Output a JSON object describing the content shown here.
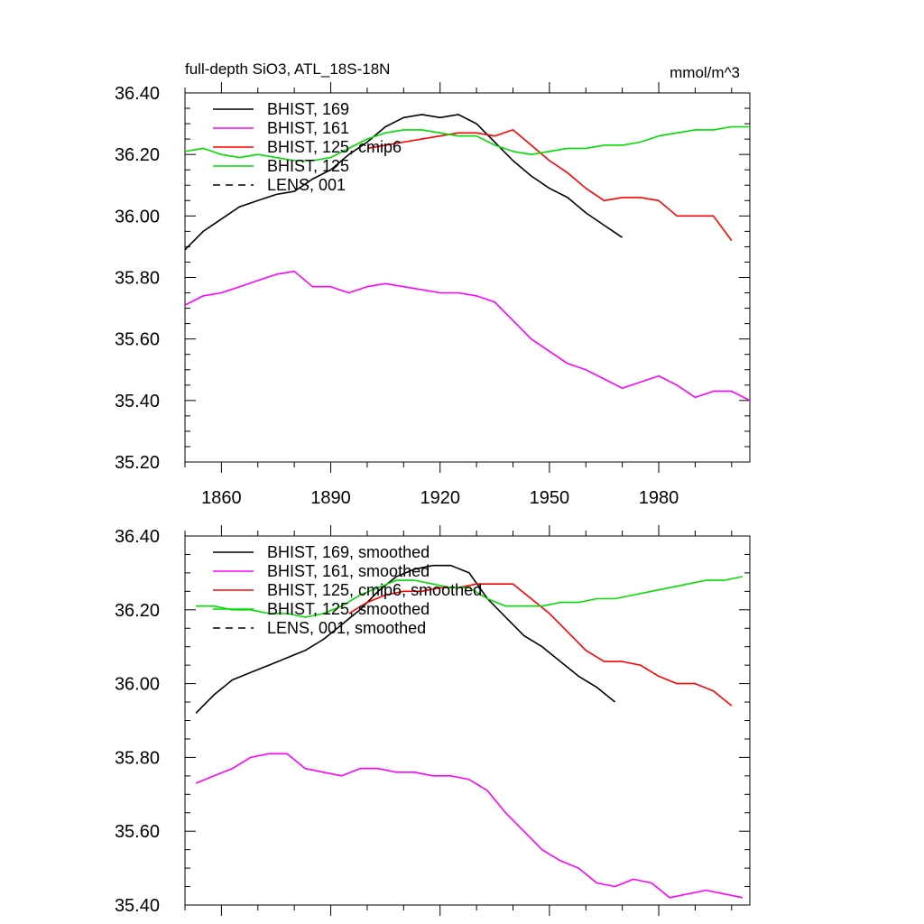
{
  "chart_data": [
    {
      "type": "line",
      "title": "full-depth SiO3, ATL_18S-18N",
      "units": "mmol/m^3",
      "xlim": [
        1850,
        2005
      ],
      "ylim": [
        35.2,
        36.4
      ],
      "xticks": [
        1860,
        1890,
        1920,
        1950,
        1980
      ],
      "yticks": [
        35.2,
        35.4,
        35.6,
        35.8,
        36.0,
        36.2,
        36.4
      ],
      "ytick_labels": [
        "35.20",
        "35.40",
        "35.60",
        "35.80",
        "36.00",
        "36.20",
        "36.40"
      ],
      "legend_position": "top-left",
      "series": [
        {
          "name": "BHIST, 169",
          "color": "#000000",
          "dash": "solid",
          "x": [
            1850,
            1855,
            1860,
            1865,
            1870,
            1875,
            1880,
            1885,
            1890,
            1895,
            1900,
            1905,
            1910,
            1915,
            1920,
            1925,
            1930,
            1935,
            1940,
            1945,
            1950,
            1955,
            1960,
            1965,
            1970
          ],
          "values": [
            35.89,
            35.95,
            35.99,
            36.03,
            36.05,
            36.07,
            36.08,
            36.12,
            36.15,
            36.2,
            36.24,
            36.29,
            36.32,
            36.33,
            36.32,
            36.33,
            36.3,
            36.24,
            36.18,
            36.13,
            36.09,
            36.06,
            36.01,
            35.97,
            35.93
          ]
        },
        {
          "name": "BHIST, 161",
          "color": "#ff00ff",
          "dash": "solid",
          "x": [
            1850,
            1855,
            1860,
            1865,
            1870,
            1875,
            1880,
            1885,
            1890,
            1895,
            1900,
            1905,
            1910,
            1915,
            1920,
            1925,
            1930,
            1935,
            1940,
            1945,
            1950,
            1955,
            1960,
            1965,
            1970,
            1975,
            1980,
            1985,
            1990,
            1995,
            2000,
            2005
          ],
          "values": [
            35.71,
            35.74,
            35.75,
            35.77,
            35.79,
            35.81,
            35.82,
            35.77,
            35.77,
            35.75,
            35.77,
            35.78,
            35.77,
            35.76,
            35.75,
            35.75,
            35.74,
            35.72,
            35.66,
            35.6,
            35.56,
            35.52,
            35.5,
            35.47,
            35.44,
            35.46,
            35.48,
            35.45,
            35.41,
            35.43,
            35.43,
            35.4
          ]
        },
        {
          "name": "BHIST, 125, cmip6",
          "color": "#ff0000",
          "dash": "solid",
          "x": [
            1900,
            1905,
            1910,
            1915,
            1920,
            1925,
            1930,
            1935,
            1940,
            1945,
            1950,
            1955,
            1960,
            1965,
            1970,
            1975,
            1980,
            1985,
            1990,
            1995,
            2000
          ],
          "values": [
            36.22,
            36.23,
            36.24,
            36.25,
            36.26,
            36.27,
            36.27,
            36.26,
            36.28,
            36.23,
            36.18,
            36.14,
            36.09,
            36.05,
            36.06,
            36.06,
            36.05,
            36.0,
            36.0,
            36.0,
            35.92
          ]
        },
        {
          "name": "BHIST, 125",
          "color": "#00dd00",
          "dash": "solid",
          "x": [
            1850,
            1855,
            1860,
            1865,
            1870,
            1875,
            1880,
            1885,
            1890,
            1895,
            1900,
            1905,
            1910,
            1915,
            1920,
            1925,
            1930,
            1935,
            1940,
            1945,
            1950,
            1955,
            1960,
            1965,
            1970,
            1975,
            1980,
            1985,
            1990,
            1995,
            2000,
            2005
          ],
          "values": [
            36.21,
            36.22,
            36.2,
            36.19,
            36.2,
            36.19,
            36.18,
            36.18,
            36.19,
            36.22,
            36.25,
            36.27,
            36.28,
            36.28,
            36.27,
            36.26,
            36.26,
            36.23,
            36.21,
            36.2,
            36.21,
            36.22,
            36.22,
            36.23,
            36.23,
            36.24,
            36.26,
            36.27,
            36.28,
            36.28,
            36.29,
            36.29
          ]
        }
      ],
      "legend": [
        {
          "label": "BHIST, 169",
          "color": "#000000",
          "dash": "solid"
        },
        {
          "label": "BHIST, 161",
          "color": "#ff00ff",
          "dash": "solid"
        },
        {
          "label": "BHIST, 125, cmip6",
          "color": "#ff0000",
          "dash": "solid"
        },
        {
          "label": "BHIST, 125",
          "color": "#00dd00",
          "dash": "solid"
        },
        {
          "label": "LENS, 001",
          "color": "#000000",
          "dash": "dashed"
        }
      ]
    },
    {
      "type": "line",
      "title": "",
      "xlim": [
        1850,
        2005
      ],
      "ylim": [
        35.4,
        36.4
      ],
      "xticks": [
        1860,
        1890,
        1920,
        1950,
        1980
      ],
      "yticks": [
        35.4,
        35.6,
        35.8,
        36.0,
        36.2,
        36.4
      ],
      "ytick_labels": [
        "35.40",
        "35.60",
        "35.80",
        "36.00",
        "36.20",
        "36.40"
      ],
      "legend_position": "top-left",
      "series": [
        {
          "name": "BHIST, 169, smoothed",
          "color": "#000000",
          "dash": "solid",
          "x": [
            1853,
            1858,
            1863,
            1868,
            1873,
            1878,
            1883,
            1888,
            1893,
            1898,
            1903,
            1908,
            1913,
            1918,
            1923,
            1928,
            1933,
            1938,
            1943,
            1948,
            1953,
            1958,
            1963,
            1968
          ],
          "values": [
            35.92,
            35.97,
            36.01,
            36.03,
            36.05,
            36.07,
            36.09,
            36.12,
            36.16,
            36.2,
            36.25,
            36.29,
            36.31,
            36.32,
            36.32,
            36.3,
            36.23,
            36.18,
            36.13,
            36.1,
            36.06,
            36.02,
            35.99,
            35.95
          ]
        },
        {
          "name": "BHIST, 161, smoothed",
          "color": "#ff00ff",
          "dash": "solid",
          "x": [
            1853,
            1858,
            1863,
            1868,
            1873,
            1878,
            1883,
            1888,
            1893,
            1898,
            1903,
            1908,
            1913,
            1918,
            1923,
            1928,
            1933,
            1938,
            1943,
            1948,
            1953,
            1958,
            1963,
            1968,
            1973,
            1978,
            1983,
            1988,
            1993,
            1998,
            2003
          ],
          "values": [
            35.73,
            35.75,
            35.77,
            35.8,
            35.81,
            35.81,
            35.77,
            35.76,
            35.75,
            35.77,
            35.77,
            35.76,
            35.76,
            35.75,
            35.75,
            35.74,
            35.71,
            35.65,
            35.6,
            35.55,
            35.52,
            35.5,
            35.46,
            35.45,
            35.47,
            35.46,
            35.42,
            35.43,
            35.44,
            35.43,
            35.42
          ]
        },
        {
          "name": "BHIST, 125, cmip6, smoothed",
          "color": "#ff0000",
          "dash": "solid",
          "x": [
            1895,
            1900,
            1905,
            1910,
            1915,
            1920,
            1925,
            1930,
            1935,
            1940,
            1945,
            1950,
            1955,
            1960,
            1965,
            1970,
            1975,
            1980,
            1985,
            1990,
            1995,
            2000
          ],
          "values": [
            36.19,
            36.22,
            36.24,
            36.25,
            36.25,
            36.26,
            36.26,
            36.27,
            36.27,
            36.27,
            36.23,
            36.19,
            36.14,
            36.09,
            36.06,
            36.06,
            36.05,
            36.02,
            36.0,
            36.0,
            35.98,
            35.94
          ]
        },
        {
          "name": "BHIST, 125, smoothed",
          "color": "#00dd00",
          "dash": "solid",
          "x": [
            1853,
            1858,
            1863,
            1868,
            1873,
            1878,
            1883,
            1888,
            1893,
            1898,
            1903,
            1908,
            1913,
            1918,
            1923,
            1928,
            1933,
            1938,
            1943,
            1948,
            1953,
            1958,
            1963,
            1968,
            1973,
            1978,
            1983,
            1988,
            1993,
            1998,
            2003
          ],
          "values": [
            36.21,
            36.21,
            36.2,
            36.2,
            36.19,
            36.19,
            36.18,
            36.19,
            36.21,
            36.24,
            36.26,
            36.28,
            36.28,
            36.27,
            36.26,
            36.26,
            36.23,
            36.21,
            36.21,
            36.21,
            36.22,
            36.22,
            36.23,
            36.23,
            36.24,
            36.25,
            36.26,
            36.27,
            36.28,
            36.28,
            36.29
          ]
        }
      ],
      "legend": [
        {
          "label": "BHIST, 169, smoothed",
          "color": "#000000",
          "dash": "solid"
        },
        {
          "label": "BHIST, 161, smoothed",
          "color": "#ff00ff",
          "dash": "solid"
        },
        {
          "label": "BHIST, 125, cmip6, smoothed",
          "color": "#ff0000",
          "dash": "solid"
        },
        {
          "label": "BHIST, 125, smoothed",
          "color": "#00dd00",
          "dash": "solid"
        },
        {
          "label": "LENS, 001, smoothed",
          "color": "#000000",
          "dash": "dashed"
        }
      ]
    }
  ]
}
